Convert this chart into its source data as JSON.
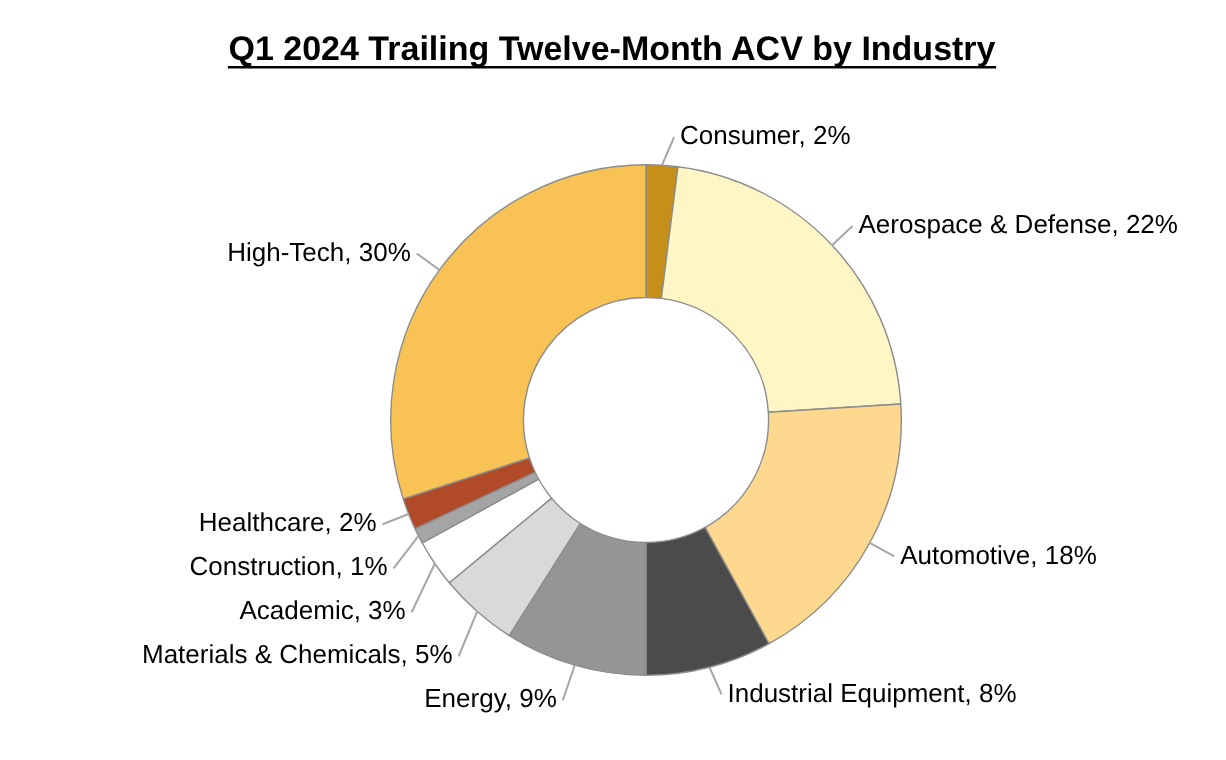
{
  "chart_data": {
    "type": "donut",
    "title": "Q1 2024 Trailing Twelve-Month ACV by Industry",
    "categories": [
      "Consumer",
      "Aerospace & Defense",
      "Automotive",
      "Industrial Equipment",
      "Energy",
      "Materials & Chemicals",
      "Academic",
      "Construction",
      "Healthcare",
      "High-Tech"
    ],
    "values": [
      2,
      22,
      18,
      8,
      9,
      5,
      3,
      1,
      2,
      30
    ],
    "value_labels": [
      "2%",
      "22%",
      "18%",
      "8%",
      "9%",
      "5%",
      "3%",
      "1%",
      "2%",
      "30%"
    ],
    "colors": [
      "#c68f17",
      "#fff6c6",
      "#fed88f",
      "#4b4b4b",
      "#959595",
      "#d9d9d9",
      "#ffffff",
      "#a5a5a5",
      "#b04a28",
      "#f9c254"
    ],
    "legend": false
  }
}
